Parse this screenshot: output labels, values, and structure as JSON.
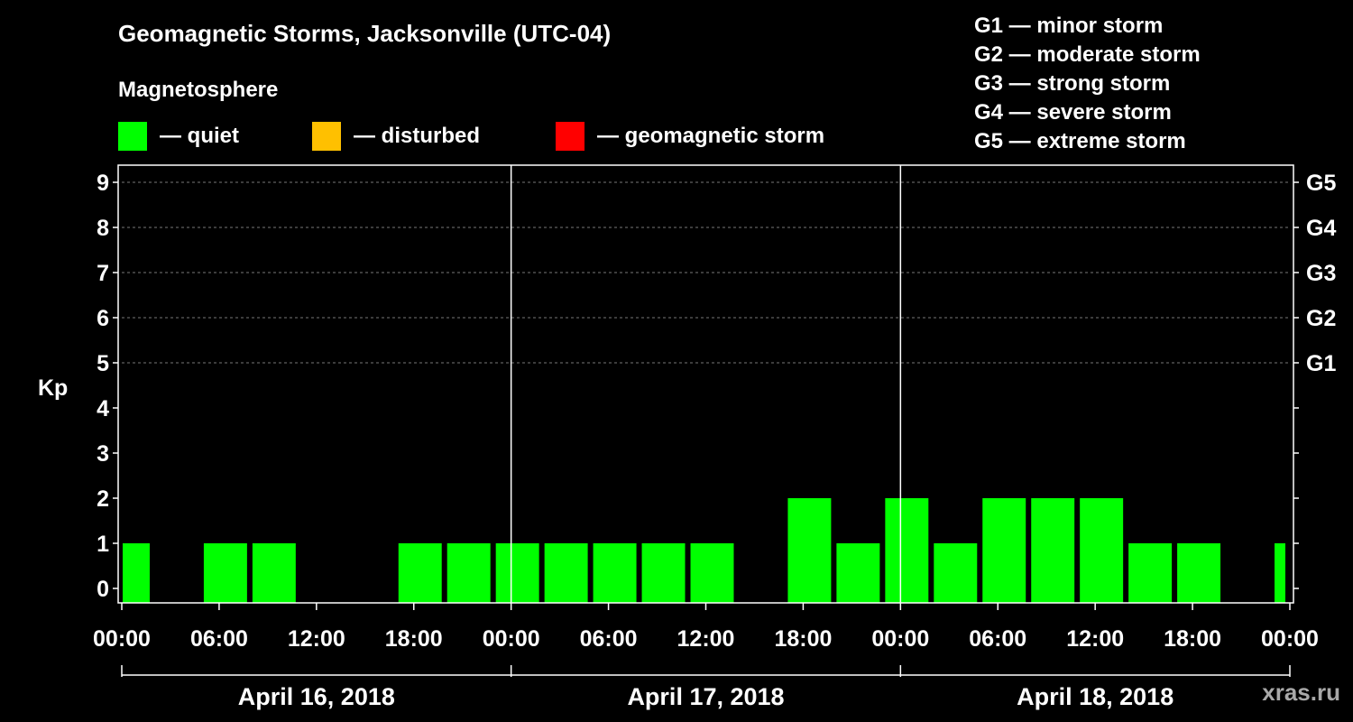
{
  "header": {
    "title": "Geomagnetic Storms, Jacksonville (UTC-04)",
    "magnetosphere_label": "Magnetosphere"
  },
  "legend": [
    {
      "label": "— quiet",
      "color": "#00ff00"
    },
    {
      "label": "— disturbed",
      "color": "#ffc000"
    },
    {
      "label": "— geomagnetic storm",
      "color": "#ff0000"
    }
  ],
  "gscale": [
    {
      "label": "G1 — minor storm"
    },
    {
      "label": "G2 — moderate storm"
    },
    {
      "label": "G3 — strong storm"
    },
    {
      "label": "G4 — severe storm"
    },
    {
      "label": "G5 — extreme storm"
    }
  ],
  "watermark": "xras.ru",
  "chart_data": {
    "type": "bar",
    "ylabel": "Kp",
    "ylim": [
      0,
      9
    ],
    "yticks": [
      "0",
      "1",
      "2",
      "3",
      "4",
      "5",
      "6",
      "7",
      "8",
      "9"
    ],
    "right_axis_labels": [
      {
        "kp": 5,
        "label": "G1"
      },
      {
        "kp": 6,
        "label": "G2"
      },
      {
        "kp": 7,
        "label": "G3"
      },
      {
        "kp": 8,
        "label": "G4"
      },
      {
        "kp": 9,
        "label": "G5"
      }
    ],
    "grid": "dashed horizontal at Kp 5-9",
    "x_hours_range": [
      0,
      72
    ],
    "xtick_labels": [
      "00:00",
      "06:00",
      "12:00",
      "18:00",
      "00:00",
      "06:00",
      "12:00",
      "18:00",
      "00:00",
      "06:00",
      "12:00",
      "18:00",
      "00:00"
    ],
    "day_labels": [
      "April 16, 2018",
      "April 17, 2018",
      "April 18, 2018"
    ],
    "bars": [
      {
        "start_hour": 0,
        "end_hour": 2,
        "kp": 1,
        "status": "quiet"
      },
      {
        "start_hour": 5,
        "end_hour": 8,
        "kp": 1,
        "status": "quiet"
      },
      {
        "start_hour": 8,
        "end_hour": 11,
        "kp": 1,
        "status": "quiet"
      },
      {
        "start_hour": 17,
        "end_hour": 20,
        "kp": 1,
        "status": "quiet"
      },
      {
        "start_hour": 20,
        "end_hour": 23,
        "kp": 1,
        "status": "quiet"
      },
      {
        "start_hour": 23,
        "end_hour": 26,
        "kp": 1,
        "status": "quiet"
      },
      {
        "start_hour": 26,
        "end_hour": 29,
        "kp": 1,
        "status": "quiet"
      },
      {
        "start_hour": 29,
        "end_hour": 32,
        "kp": 1,
        "status": "quiet"
      },
      {
        "start_hour": 32,
        "end_hour": 35,
        "kp": 1,
        "status": "quiet"
      },
      {
        "start_hour": 35,
        "end_hour": 38,
        "kp": 1,
        "status": "quiet"
      },
      {
        "start_hour": 41,
        "end_hour": 44,
        "kp": 2,
        "status": "quiet"
      },
      {
        "start_hour": 44,
        "end_hour": 47,
        "kp": 1,
        "status": "quiet"
      },
      {
        "start_hour": 47,
        "end_hour": 50,
        "kp": 2,
        "status": "quiet"
      },
      {
        "start_hour": 50,
        "end_hour": 53,
        "kp": 1,
        "status": "quiet"
      },
      {
        "start_hour": 53,
        "end_hour": 56,
        "kp": 2,
        "status": "quiet"
      },
      {
        "start_hour": 56,
        "end_hour": 59,
        "kp": 2,
        "status": "quiet"
      },
      {
        "start_hour": 59,
        "end_hour": 62,
        "kp": 2,
        "status": "quiet"
      },
      {
        "start_hour": 62,
        "end_hour": 65,
        "kp": 1,
        "status": "quiet"
      },
      {
        "start_hour": 65,
        "end_hour": 68,
        "kp": 1,
        "status": "quiet"
      },
      {
        "start_hour": 71,
        "end_hour": 72,
        "kp": 1,
        "status": "quiet"
      }
    ],
    "status_colors": {
      "quiet": "#00ff00",
      "disturbed": "#ffc000",
      "storm": "#ff0000"
    }
  }
}
